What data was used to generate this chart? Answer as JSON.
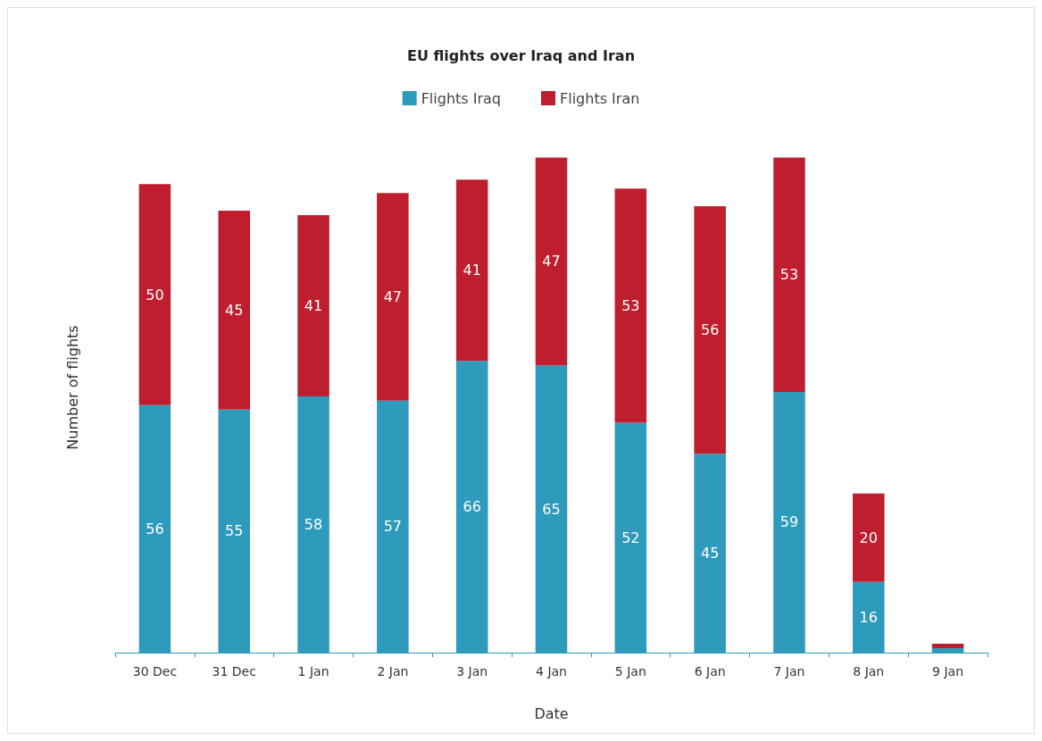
{
  "chart_data": {
    "type": "bar",
    "title": "EU flights over Iraq and Iran",
    "xlabel": "Date",
    "ylabel": "Number of flights",
    "categories": [
      "30 Dec",
      "31 Dec",
      "1 Jan",
      "2 Jan",
      "3 Jan",
      "4 Jan",
      "5 Jan",
      "6 Jan",
      "7 Jan",
      "8 Jan",
      "9 Jan"
    ],
    "stacked": true,
    "legend": "top",
    "grid": false,
    "series": [
      {
        "name": "Flights Iraq",
        "color": "#2e9abc",
        "values": [
          56,
          55,
          58,
          57,
          66,
          65,
          52,
          45,
          59,
          16,
          1
        ],
        "value_labels": [
          "56",
          "55",
          "58",
          "57",
          "66",
          "65",
          "52",
          "45",
          "59",
          "16",
          null
        ]
      },
      {
        "name": "Flights Iran",
        "color": "#be1e2d",
        "values": [
          50,
          45,
          41,
          47,
          41,
          47,
          53,
          56,
          53,
          20,
          1
        ],
        "value_labels": [
          "50",
          "45",
          "41",
          "47",
          "41",
          "47",
          "53",
          "56",
          "53",
          "20",
          null
        ]
      }
    ]
  }
}
